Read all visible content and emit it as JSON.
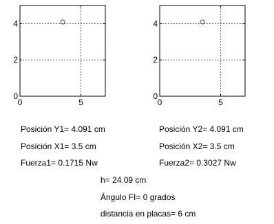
{
  "plots": [
    {
      "name": "left",
      "xlim": [
        0,
        7
      ],
      "ylim": [
        0,
        5
      ],
      "xticks": [
        0,
        5
      ],
      "yticks": [
        0,
        2,
        4
      ],
      "grid": true,
      "point": {
        "x": 3.5,
        "y": 4.091
      },
      "marker": "circle",
      "marker_color": "#3333ff"
    },
    {
      "name": "right",
      "xlim": [
        0,
        7
      ],
      "ylim": [
        0,
        5
      ],
      "xticks": [
        0,
        5
      ],
      "yticks": [
        0,
        2,
        4
      ],
      "grid": true,
      "point": {
        "x": 3.5,
        "y": 4.091
      },
      "marker": "circle",
      "marker_color": "#3333ff"
    }
  ],
  "readouts": {
    "pos_y1": "Posición Y1= 4.091 cm",
    "pos_x1": "Posición X1= 3.5 cm",
    "fuerza1": "Fuerza1= 0.1715 Nw",
    "pos_y2": "Posición Y2= 4.091 cm",
    "pos_x2": "Posición X2= 3.5 cm",
    "fuerza2": "Fuerza2= 0.3027 Nw",
    "h": "h= 24.09 cm",
    "angulo": "Ángulo FI= 0 grados",
    "distancia": "distancia en placas= 6 cm"
  }
}
